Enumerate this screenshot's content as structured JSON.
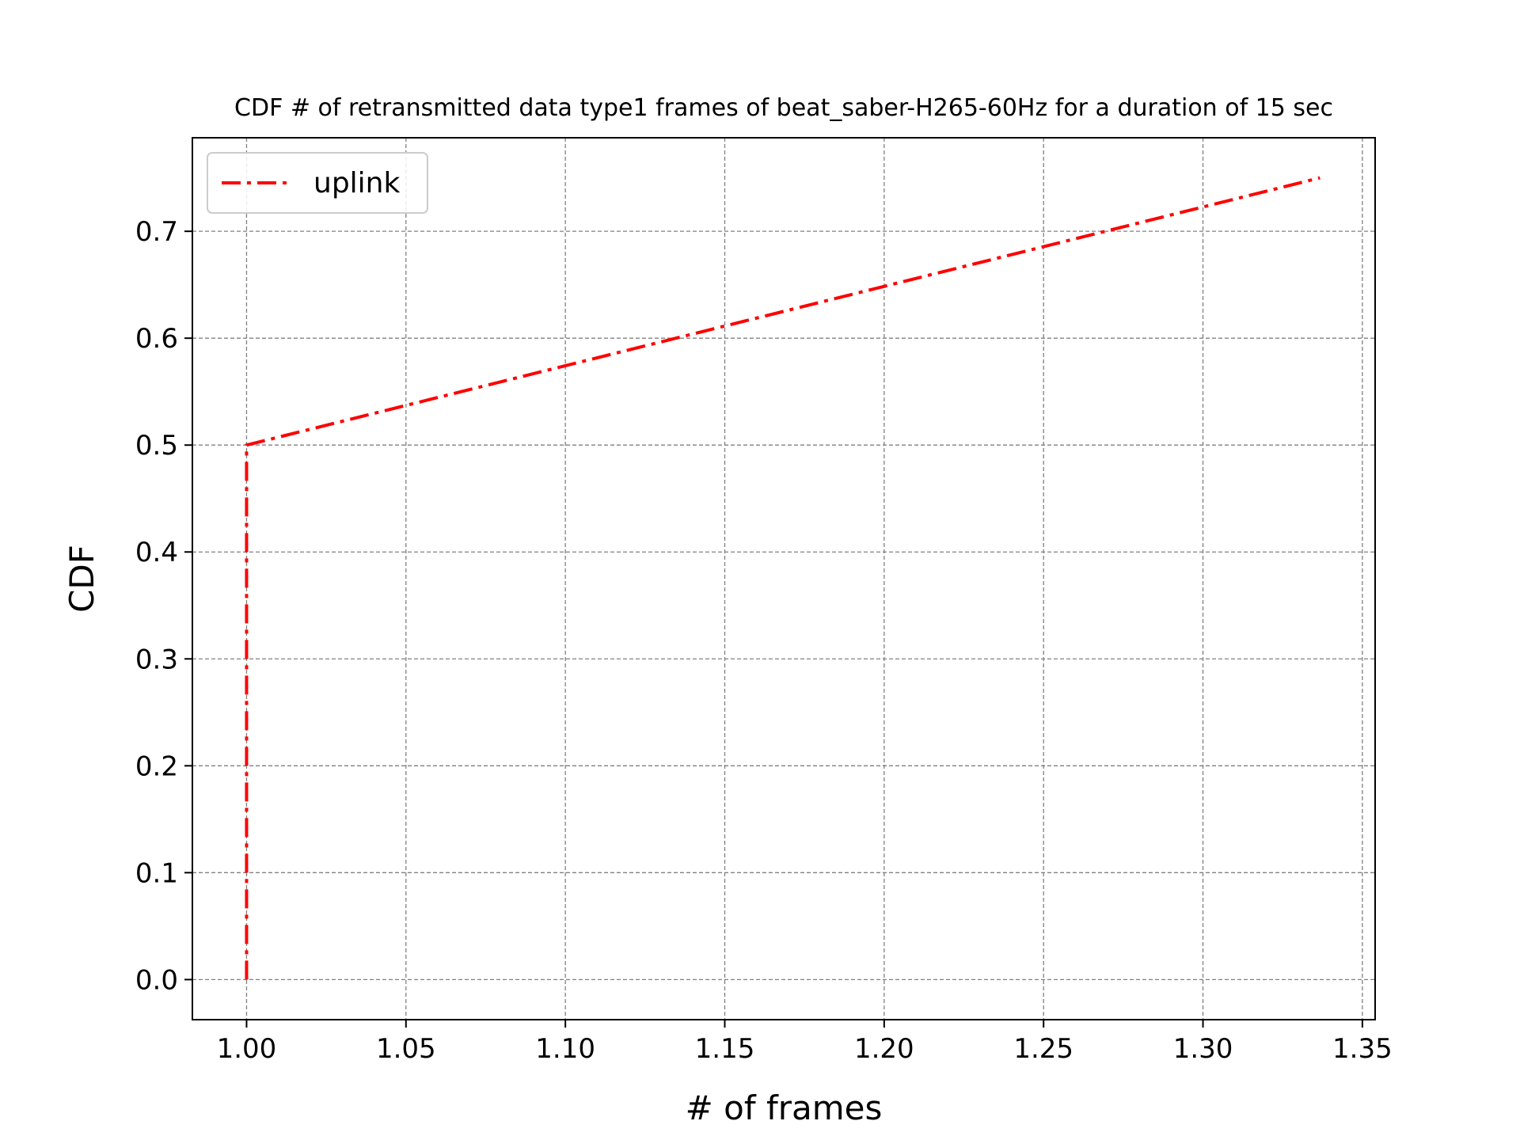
{
  "chart_data": {
    "type": "line",
    "title": "CDF # of retransmitted data type1 frames of beat_saber-H265-60Hz for a duration of 15 sec",
    "xlabel": "# of frames",
    "ylabel": "CDF",
    "xlim": [
      0.983,
      1.354
    ],
    "ylim": [
      -0.0375,
      0.7875
    ],
    "xticks": [
      1.0,
      1.05,
      1.1,
      1.15,
      1.2,
      1.25,
      1.3,
      1.35
    ],
    "xtick_labels": [
      "1.00",
      "1.05",
      "1.10",
      "1.15",
      "1.20",
      "1.25",
      "1.30",
      "1.35"
    ],
    "yticks": [
      0.0,
      0.1,
      0.2,
      0.3,
      0.4,
      0.5,
      0.6,
      0.7
    ],
    "ytick_labels": [
      "0.0",
      "0.1",
      "0.2",
      "0.3",
      "0.4",
      "0.5",
      "0.6",
      "0.7"
    ],
    "grid": true,
    "legend_position": "top-left",
    "series": [
      {
        "name": "uplink",
        "color": "#ff0000",
        "line_style": "dash-dot",
        "x": [
          1.0,
          1.0,
          1.3367
        ],
        "y": [
          0.0,
          0.5,
          0.75
        ]
      }
    ]
  }
}
